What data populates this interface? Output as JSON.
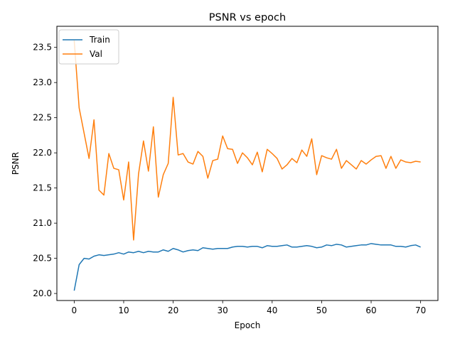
{
  "chart_data": {
    "type": "line",
    "title": "PSNR vs epoch",
    "xlabel": "Epoch",
    "ylabel": "PSNR",
    "xlim": [
      -3.5,
      73.5
    ],
    "ylim": [
      19.9,
      23.8
    ],
    "xticks": [
      0,
      10,
      20,
      30,
      40,
      50,
      60,
      70
    ],
    "yticks": [
      20.0,
      20.5,
      21.0,
      21.5,
      22.0,
      22.5,
      23.0,
      23.5
    ],
    "ytick_labels": [
      "20.0",
      "20.5",
      "21.0",
      "21.5",
      "22.0",
      "22.5",
      "23.0",
      "23.5"
    ],
    "grid": false,
    "legend_position": "upper-left",
    "x": [
      0,
      1,
      2,
      3,
      4,
      5,
      6,
      7,
      8,
      9,
      10,
      11,
      12,
      13,
      14,
      15,
      16,
      17,
      18,
      19,
      20,
      21,
      22,
      23,
      24,
      25,
      26,
      27,
      28,
      29,
      30,
      31,
      32,
      33,
      34,
      35,
      36,
      37,
      38,
      39,
      40,
      41,
      42,
      43,
      44,
      45,
      46,
      47,
      48,
      49,
      50,
      51,
      52,
      53,
      54,
      55,
      56,
      57,
      58,
      59,
      60,
      61,
      62,
      63,
      64,
      65,
      66,
      67,
      68,
      69,
      70
    ],
    "series": [
      {
        "name": "Train",
        "color": "#1f77b4",
        "values": [
          20.04,
          20.41,
          20.5,
          20.49,
          20.53,
          20.55,
          20.54,
          20.55,
          20.56,
          20.58,
          20.56,
          20.59,
          20.58,
          20.6,
          20.58,
          20.6,
          20.59,
          20.59,
          20.62,
          20.6,
          20.64,
          20.62,
          20.59,
          20.61,
          20.62,
          20.61,
          20.65,
          20.64,
          20.63,
          20.64,
          20.64,
          20.64,
          20.66,
          20.67,
          20.67,
          20.66,
          20.67,
          20.67,
          20.65,
          20.68,
          20.67,
          20.67,
          20.68,
          20.69,
          20.66,
          20.66,
          20.67,
          20.68,
          20.67,
          20.65,
          20.66,
          20.69,
          20.68,
          20.7,
          20.69,
          20.66,
          20.67,
          20.68,
          20.69,
          20.69,
          20.71,
          20.7,
          20.69,
          20.69,
          20.69,
          20.67,
          20.67,
          20.66,
          20.68,
          20.69,
          20.66
        ]
      },
      {
        "name": "Val",
        "color": "#ff7f0e",
        "values": [
          23.6,
          22.64,
          22.28,
          21.92,
          22.47,
          21.47,
          21.4,
          21.99,
          21.78,
          21.76,
          21.33,
          21.87,
          20.76,
          21.7,
          22.17,
          21.74,
          22.37,
          21.37,
          21.69,
          21.85,
          22.79,
          21.97,
          21.99,
          21.87,
          21.84,
          22.02,
          21.95,
          21.64,
          21.89,
          21.91,
          22.24,
          22.06,
          22.05,
          21.85,
          22.0,
          21.93,
          21.83,
          22.01,
          21.73,
          22.05,
          21.99,
          21.92,
          21.77,
          21.83,
          21.92,
          21.86,
          22.04,
          21.95,
          22.2,
          21.69,
          21.96,
          21.93,
          21.91,
          22.05,
          21.78,
          21.89,
          21.83,
          21.77,
          21.89,
          21.84,
          21.9,
          21.95,
          21.96,
          21.78,
          21.95,
          21.78,
          21.9,
          21.87,
          21.86,
          21.88,
          21.87
        ]
      }
    ]
  }
}
